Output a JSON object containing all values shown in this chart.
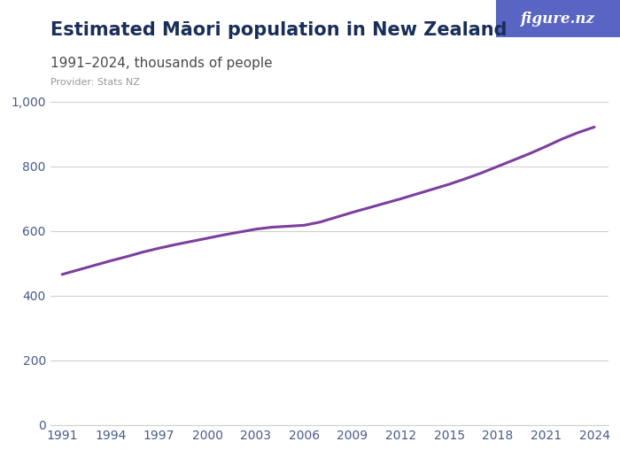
{
  "title": "Estimated Māori population in New Zealand",
  "subtitle": "1991–2024, thousands of people",
  "provider": "Provider: Stats NZ",
  "line_color": "#7B3F9E",
  "background_color": "#ffffff",
  "logo_bg_color": "#5865C3",
  "logo_text": "figure.nz",
  "years": [
    1991,
    1992,
    1993,
    1994,
    1995,
    1996,
    1997,
    1998,
    1999,
    2000,
    2001,
    2002,
    2003,
    2004,
    2005,
    2006,
    2007,
    2008,
    2009,
    2010,
    2011,
    2012,
    2013,
    2014,
    2015,
    2016,
    2017,
    2018,
    2019,
    2020,
    2021,
    2022,
    2023,
    2024
  ],
  "values": [
    466,
    480,
    494,
    508,
    521,
    535,
    547,
    558,
    568,
    578,
    588,
    597,
    606,
    612,
    615,
    618,
    628,
    643,
    658,
    672,
    686,
    700,
    715,
    730,
    745,
    762,
    780,
    800,
    820,
    840,
    862,
    885,
    905,
    922
  ],
  "ylim": [
    0,
    1000
  ],
  "yticks": [
    0,
    200,
    400,
    600,
    800,
    1000
  ],
  "xticks": [
    1991,
    1994,
    1997,
    2000,
    2003,
    2006,
    2009,
    2012,
    2015,
    2018,
    2021,
    2024
  ],
  "title_fontsize": 15,
  "subtitle_fontsize": 11,
  "provider_fontsize": 8,
  "tick_fontsize": 10,
  "title_color": "#1a2e5a",
  "subtitle_color": "#4a4a4a",
  "provider_color": "#999999",
  "tick_color": "#4a5a8a",
  "grid_color": "#d0d0d0",
  "line_width": 2.2
}
